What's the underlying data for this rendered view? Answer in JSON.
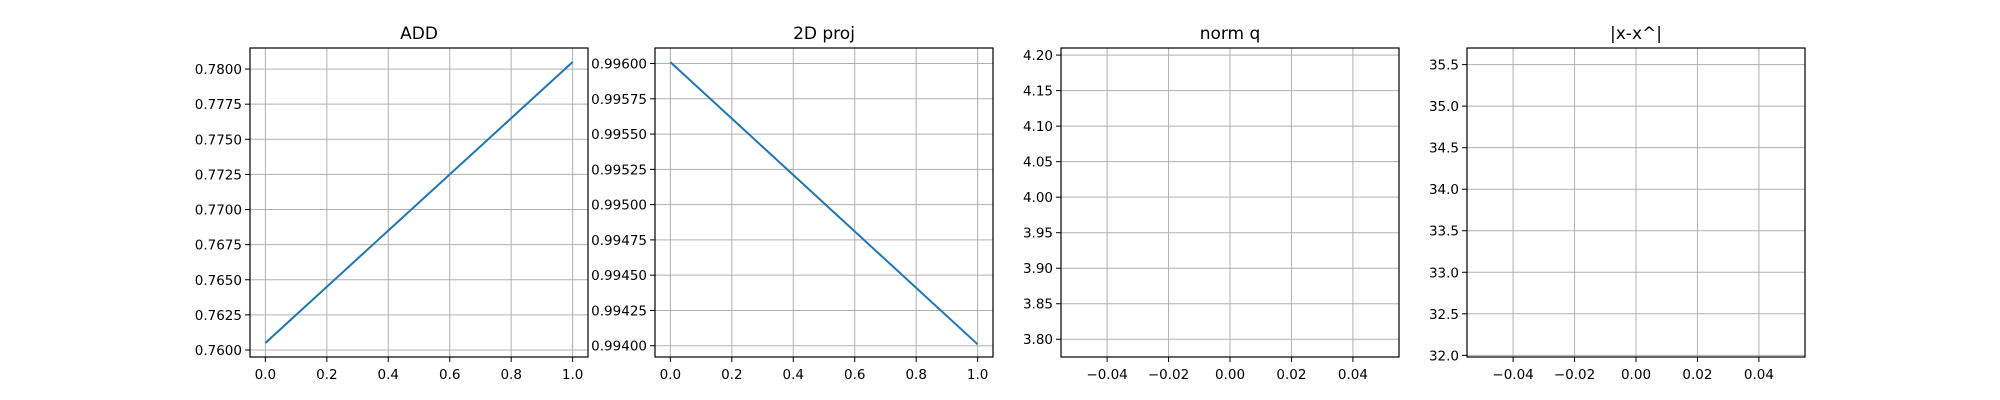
{
  "chart_data": [
    {
      "type": "line",
      "title": "ADD",
      "xlabel": "",
      "ylabel": "",
      "xlim": [
        -0.05,
        1.05
      ],
      "ylim": [
        0.7595,
        0.7815
      ],
      "x_ticks": [
        0.0,
        0.2,
        0.4,
        0.6,
        0.8,
        1.0
      ],
      "x_tick_labels": [
        "0.0",
        "0.2",
        "0.4",
        "0.6",
        "0.8",
        "1.0"
      ],
      "y_ticks": [
        0.76,
        0.7625,
        0.765,
        0.7675,
        0.77,
        0.7725,
        0.775,
        0.7775,
        0.78
      ],
      "y_tick_labels": [
        "0.7600",
        "0.7625",
        "0.7650",
        "0.7675",
        "0.7700",
        "0.7725",
        "0.7750",
        "0.7775",
        "0.7800"
      ],
      "grid": true,
      "series": [
        {
          "color": "#1f77b4",
          "x": [
            0,
            1
          ],
          "y": [
            0.7605,
            0.7805
          ]
        }
      ]
    },
    {
      "type": "line",
      "title": "2D proj",
      "xlabel": "",
      "ylabel": "",
      "xlim": [
        -0.05,
        1.05
      ],
      "ylim": [
        0.99392,
        0.99611
      ],
      "x_ticks": [
        0.0,
        0.2,
        0.4,
        0.6,
        0.8,
        1.0
      ],
      "x_tick_labels": [
        "0.0",
        "0.2",
        "0.4",
        "0.6",
        "0.8",
        "1.0"
      ],
      "y_ticks": [
        0.994,
        0.99425,
        0.9945,
        0.99475,
        0.995,
        0.99525,
        0.9955,
        0.99575,
        0.996
      ],
      "y_tick_labels": [
        "0.99400",
        "0.99425",
        "0.99450",
        "0.99475",
        "0.99500",
        "0.99525",
        "0.99550",
        "0.99575",
        "0.99600"
      ],
      "grid": true,
      "series": [
        {
          "color": "#1f77b4",
          "x": [
            0,
            1
          ],
          "y": [
            0.99601,
            0.99401
          ]
        }
      ]
    },
    {
      "type": "line",
      "title": "norm q",
      "xlabel": "",
      "ylabel": "",
      "xlim": [
        -0.055,
        0.055
      ],
      "ylim": [
        3.775,
        4.21
      ],
      "x_ticks": [
        -0.04,
        -0.02,
        0.0,
        0.02,
        0.04
      ],
      "x_tick_labels": [
        "−0.04",
        "−0.02",
        "0.00",
        "0.02",
        "0.04"
      ],
      "y_ticks": [
        3.8,
        3.85,
        3.9,
        3.95,
        4.0,
        4.05,
        4.1,
        4.15,
        4.2
      ],
      "y_tick_labels": [
        "3.80",
        "3.85",
        "3.90",
        "3.95",
        "4.00",
        "4.05",
        "4.10",
        "4.15",
        "4.20"
      ],
      "grid": true,
      "series": []
    },
    {
      "type": "line",
      "title": "|x-x^|",
      "xlabel": "",
      "ylabel": "",
      "xlim": [
        -0.055,
        0.055
      ],
      "ylim": [
        31.98,
        35.7
      ],
      "x_ticks": [
        -0.04,
        -0.02,
        0.0,
        0.02,
        0.04
      ],
      "x_tick_labels": [
        "−0.04",
        "−0.02",
        "0.00",
        "0.02",
        "0.04"
      ],
      "y_ticks": [
        32.0,
        32.5,
        33.0,
        33.5,
        34.0,
        34.5,
        35.0,
        35.5
      ],
      "y_tick_labels": [
        "32.0",
        "32.5",
        "33.0",
        "33.5",
        "34.0",
        "34.5",
        "35.0",
        "35.5"
      ],
      "grid": true,
      "series": []
    }
  ]
}
